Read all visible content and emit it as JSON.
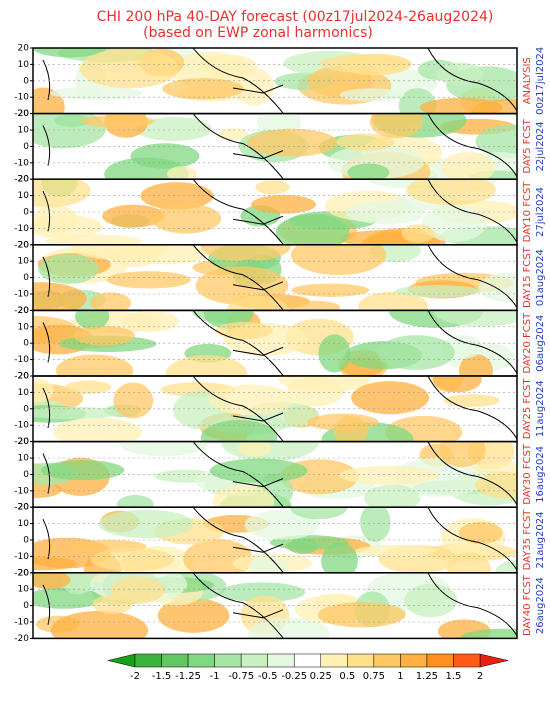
{
  "title": "CHI 200 hPa 40-DAY forecast (00z17jul2024-26aug2024)",
  "subtitle": "(based on EWP zonal harmonics)",
  "ylim": [
    -20,
    20
  ],
  "yticks": [
    20,
    10,
    0,
    -10,
    -20
  ],
  "panels": [
    {
      "label": "ANALYSIS",
      "date": "00z17jul2024"
    },
    {
      "label": "DAY5 FCST",
      "date": "22jul2024"
    },
    {
      "label": "DAY10 FCST",
      "date": "27jul2024"
    },
    {
      "label": "DAY15 FCST",
      "date": "01aug2024"
    },
    {
      "label": "DAY20 FCST",
      "date": "06aug2024"
    },
    {
      "label": "DAY25 FCST",
      "date": "11aug2024"
    },
    {
      "label": "DAY30 FCST",
      "date": "16aug2024"
    },
    {
      "label": "DAY35 FCST",
      "date": "21aug2024"
    },
    {
      "label": "DAY40 FCST",
      "date": "26aug2024"
    }
  ],
  "colorbar": {
    "ticks": [
      -2,
      -1.5,
      -1.25,
      -1,
      -0.75,
      -0.5,
      -0.25,
      0.25,
      0.5,
      0.75,
      1,
      1.25,
      1.5,
      2
    ],
    "colors": [
      "#18a018",
      "#3cb43c",
      "#60c860",
      "#82d882",
      "#a6e6a6",
      "#c8f0c0",
      "#e4f8e0",
      "#ffffff",
      "#fff0b4",
      "#ffe08c",
      "#ffc864",
      "#ffb040",
      "#ff9020",
      "#ff5a1a",
      "#e82010"
    ]
  }
}
